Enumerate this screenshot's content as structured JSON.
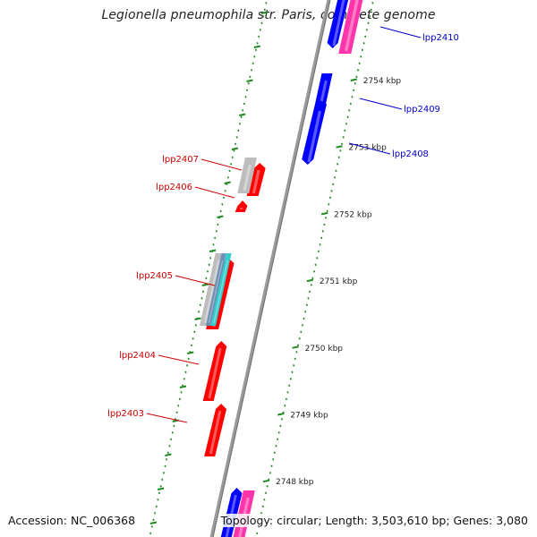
{
  "title": "Legionella pneumophila str. Paris, complete genome",
  "footer": {
    "accession": "Accession: NC_006368",
    "topology": "Topology: circular; Length: 3,503,610 bp; Genes: 3,080"
  },
  "colors": {
    "backbone": "#8c8c8c",
    "tick": "#1f8a1f",
    "forward_gene": "#ff0000",
    "reverse_gene": "#0000ff",
    "pseudo_gene": "#ff33aa",
    "grey_feature": "#bdbdbd",
    "cyan_feature": "#33cccc",
    "forward_label": "#cc0000",
    "reverse_label": "#0000cc"
  },
  "scale": {
    "unit": "kbp",
    "ticks": [
      {
        "label": "2754 kbp",
        "kbp": 2754
      },
      {
        "label": "2753 kbp",
        "kbp": 2753
      },
      {
        "label": "2752 kbp",
        "kbp": 2752
      },
      {
        "label": "2751 kbp",
        "kbp": 2751
      },
      {
        "label": "2750 kbp",
        "kbp": 2750
      },
      {
        "label": "2749 kbp",
        "kbp": 2749
      },
      {
        "label": "2748 kbp",
        "kbp": 2748
      }
    ]
  },
  "genes": {
    "forward_strand": [
      {
        "locus": "lpp2407"
      },
      {
        "locus": "lpp2406"
      },
      {
        "locus": "lpp2405"
      },
      {
        "locus": "lpp2404"
      },
      {
        "locus": "lpp2403"
      }
    ],
    "reverse_strand": [
      {
        "locus": "lpp2410"
      },
      {
        "locus": "lpp2409"
      },
      {
        "locus": "lpp2408"
      }
    ]
  }
}
